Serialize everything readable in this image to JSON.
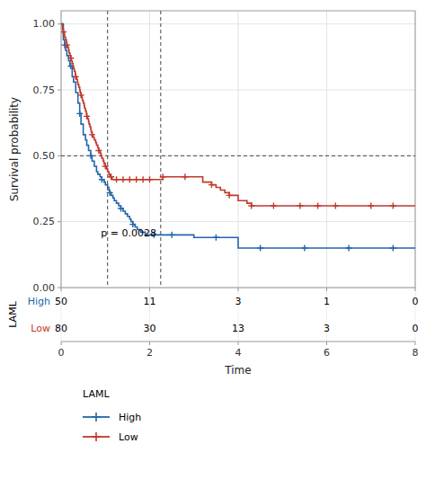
{
  "chart_data": {
    "type": "step",
    "xlabel": "Time",
    "ylabel": "Survival probability",
    "xlim": [
      0,
      8
    ],
    "ylim": [
      0.0,
      1.05
    ],
    "xticks": [
      0,
      2,
      4,
      6,
      8
    ],
    "yticks": [
      {
        "value": 0.0,
        "label": "0.00"
      },
      0.25,
      {
        "value": 0.5,
        "label": "0.50"
      },
      0.75,
      {
        "value": 1.0,
        "label": "1.00"
      }
    ],
    "grid": true,
    "legend": "bottom",
    "legend_title": "LAML",
    "annotations": [
      {
        "text": "p = 0.0028",
        "x": 0.9,
        "y": 0.195
      }
    ],
    "reference_lines": {
      "x": [
        1.05,
        2.25
      ],
      "y": [
        0.5
      ]
    },
    "series": [
      {
        "name": "High",
        "color": "#2166ac",
        "marker": "plus",
        "x": [
          0.0,
          0.05,
          0.08,
          0.1,
          0.13,
          0.17,
          0.2,
          0.25,
          0.28,
          0.33,
          0.38,
          0.42,
          0.45,
          0.5,
          0.55,
          0.58,
          0.62,
          0.67,
          0.7,
          0.75,
          0.8,
          0.83,
          0.88,
          0.92,
          0.97,
          1.0,
          1.05,
          1.08,
          1.1,
          1.13,
          1.17,
          1.2,
          1.25,
          1.3,
          1.35,
          1.4,
          1.45,
          1.5,
          1.55,
          1.58,
          1.62,
          1.67,
          1.72,
          1.8,
          1.9,
          2.0,
          2.1,
          2.2,
          2.3,
          2.5,
          2.7,
          3.0,
          3.5,
          4.0,
          4.5,
          5.0,
          5.5,
          6.0,
          6.5,
          7.0,
          7.5,
          8.0
        ],
        "values": [
          1.0,
          0.94,
          0.92,
          0.9,
          0.88,
          0.86,
          0.84,
          0.8,
          0.78,
          0.74,
          0.7,
          0.66,
          0.62,
          0.58,
          0.56,
          0.54,
          0.52,
          0.5,
          0.48,
          0.46,
          0.44,
          0.43,
          0.42,
          0.41,
          0.4,
          0.39,
          0.38,
          0.37,
          0.36,
          0.35,
          0.34,
          0.33,
          0.32,
          0.31,
          0.3,
          0.29,
          0.28,
          0.27,
          0.26,
          0.25,
          0.24,
          0.23,
          0.22,
          0.21,
          0.2,
          0.2,
          0.2,
          0.2,
          0.2,
          0.2,
          0.2,
          0.19,
          0.19,
          0.15,
          0.15,
          0.15,
          0.15,
          0.15,
          0.15,
          0.15,
          0.15,
          0.15
        ],
        "censor_x": [
          0.08,
          0.22,
          0.42,
          0.67,
          0.92,
          1.1,
          1.35,
          1.62,
          2.1,
          2.5,
          3.5,
          4.5,
          5.5,
          6.5,
          7.5
        ],
        "censor_values": [
          0.92,
          0.84,
          0.66,
          0.5,
          0.41,
          0.36,
          0.3,
          0.24,
          0.2,
          0.2,
          0.19,
          0.15,
          0.15,
          0.15,
          0.15
        ]
      },
      {
        "name": "Low",
        "color": "#c0392b",
        "marker": "plus",
        "x": [
          0.0,
          0.03,
          0.05,
          0.07,
          0.08,
          0.1,
          0.12,
          0.13,
          0.15,
          0.17,
          0.18,
          0.2,
          0.22,
          0.23,
          0.25,
          0.27,
          0.28,
          0.3,
          0.32,
          0.33,
          0.35,
          0.37,
          0.38,
          0.4,
          0.42,
          0.43,
          0.45,
          0.47,
          0.48,
          0.5,
          0.52,
          0.53,
          0.55,
          0.57,
          0.58,
          0.6,
          0.62,
          0.63,
          0.65,
          0.67,
          0.68,
          0.7,
          0.72,
          0.75,
          0.78,
          0.8,
          0.83,
          0.85,
          0.88,
          0.9,
          0.92,
          0.95,
          0.97,
          1.0,
          1.03,
          1.05,
          1.08,
          1.1,
          1.13,
          1.15,
          1.18,
          1.2,
          1.23,
          1.25,
          1.28,
          1.3,
          1.33,
          1.35,
          1.4,
          1.45,
          1.5,
          1.55,
          1.6,
          1.65,
          1.7,
          1.75,
          1.8,
          1.85,
          1.9,
          1.95,
          2.0,
          2.1,
          2.2,
          2.25,
          2.3,
          2.4,
          2.5,
          2.6,
          2.8,
          3.0,
          3.2,
          3.4,
          3.5,
          3.6,
          3.7,
          3.8,
          4.0,
          4.2,
          4.3,
          4.4,
          4.5,
          4.6,
          4.8,
          5.0,
          5.2,
          5.4,
          5.6,
          5.8,
          6.0,
          6.2,
          6.5,
          7.0,
          7.5,
          8.0
        ],
        "values": [
          1.0,
          0.98,
          0.97,
          0.96,
          0.95,
          0.94,
          0.93,
          0.92,
          0.91,
          0.9,
          0.89,
          0.88,
          0.87,
          0.86,
          0.85,
          0.84,
          0.83,
          0.82,
          0.81,
          0.8,
          0.79,
          0.78,
          0.77,
          0.76,
          0.75,
          0.74,
          0.73,
          0.72,
          0.71,
          0.7,
          0.69,
          0.68,
          0.67,
          0.66,
          0.65,
          0.64,
          0.63,
          0.62,
          0.61,
          0.6,
          0.59,
          0.58,
          0.57,
          0.56,
          0.55,
          0.54,
          0.53,
          0.52,
          0.51,
          0.5,
          0.49,
          0.48,
          0.47,
          0.46,
          0.45,
          0.44,
          0.43,
          0.42,
          0.42,
          0.41,
          0.41,
          0.41,
          0.41,
          0.41,
          0.41,
          0.41,
          0.41,
          0.41,
          0.41,
          0.41,
          0.41,
          0.41,
          0.41,
          0.41,
          0.41,
          0.41,
          0.41,
          0.41,
          0.41,
          0.41,
          0.41,
          0.41,
          0.41,
          0.41,
          0.42,
          0.42,
          0.42,
          0.42,
          0.42,
          0.42,
          0.4,
          0.39,
          0.38,
          0.37,
          0.36,
          0.35,
          0.33,
          0.32,
          0.31,
          0.31,
          0.31,
          0.31,
          0.31,
          0.31,
          0.31,
          0.31,
          0.31,
          0.31,
          0.31,
          0.31,
          0.31,
          0.31,
          0.31,
          0.31
        ],
        "censor_x": [
          0.05,
          0.13,
          0.22,
          0.33,
          0.45,
          0.58,
          0.7,
          0.85,
          1.0,
          1.13,
          1.25,
          1.4,
          1.55,
          1.7,
          1.85,
          2.0,
          2.3,
          2.8,
          3.4,
          3.8,
          4.3,
          4.8,
          5.4,
          5.8,
          6.2,
          7.0,
          7.5
        ],
        "censor_values": [
          0.97,
          0.92,
          0.87,
          0.8,
          0.73,
          0.65,
          0.58,
          0.52,
          0.46,
          0.42,
          0.41,
          0.41,
          0.41,
          0.41,
          0.41,
          0.41,
          0.42,
          0.42,
          0.39,
          0.35,
          0.31,
          0.31,
          0.31,
          0.31,
          0.31,
          0.31,
          0.31
        ]
      }
    ],
    "risk_table": {
      "title": "LAML",
      "times": [
        0,
        2,
        4,
        6,
        8
      ],
      "rows": [
        {
          "name": "High",
          "color": "#2166ac",
          "values": [
            50,
            11,
            3,
            1,
            0
          ]
        },
        {
          "name": "Low",
          "color": "#c0392b",
          "values": [
            80,
            30,
            13,
            3,
            0
          ]
        }
      ]
    }
  }
}
